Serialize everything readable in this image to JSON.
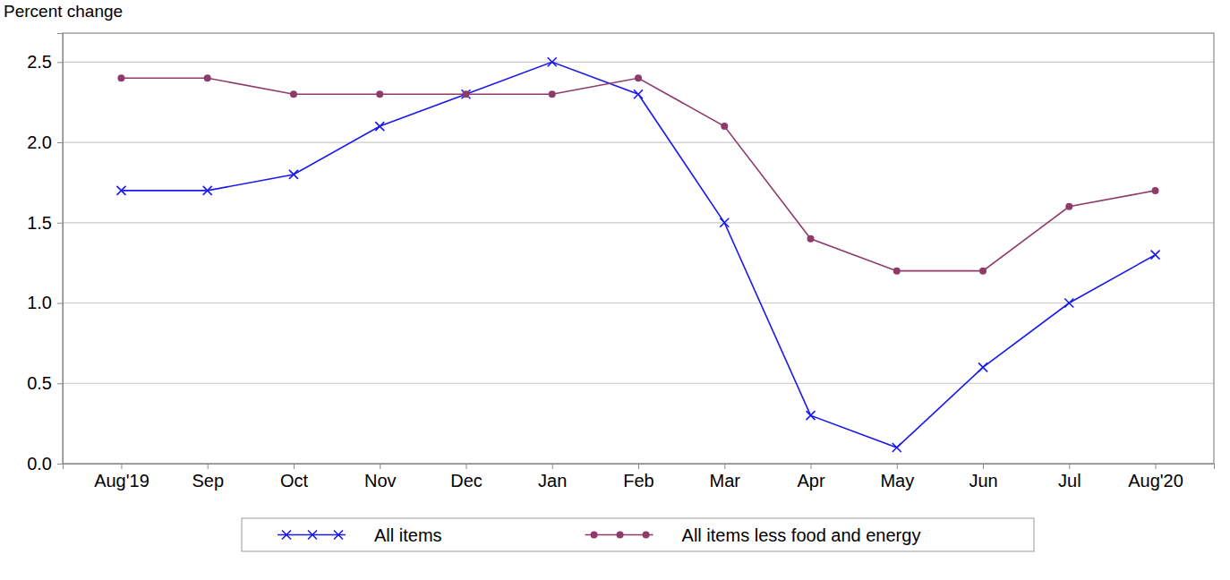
{
  "chart_data": {
    "type": "line",
    "y_label": "Percent change",
    "categories": [
      "Aug'19",
      "Sep",
      "Oct",
      "Nov",
      "Dec",
      "Jan",
      "Feb",
      "Mar",
      "Apr",
      "May",
      "Jun",
      "Jul",
      "Aug'20"
    ],
    "series": [
      {
        "name": "All items",
        "color": "#1a1aee",
        "marker": "x",
        "values": [
          1.7,
          1.7,
          1.8,
          2.1,
          2.3,
          2.5,
          2.3,
          1.5,
          0.3,
          0.1,
          0.6,
          1.0,
          1.3
        ]
      },
      {
        "name": "All items less food and energy",
        "color": "#8e3b6a",
        "marker": "circle",
        "values": [
          2.4,
          2.4,
          2.3,
          2.3,
          2.3,
          2.3,
          2.4,
          2.1,
          1.4,
          1.2,
          1.2,
          1.6,
          1.7
        ]
      }
    ],
    "ylim": [
      0,
      2.68
    ],
    "yticks": [
      {
        "value": 0,
        "label": "0.0"
      },
      0.5,
      {
        "value": 1,
        "label": "1.0"
      },
      1.5,
      {
        "value": 2,
        "label": "2.0"
      },
      2.5
    ],
    "grid": true,
    "legend": "bottom"
  }
}
